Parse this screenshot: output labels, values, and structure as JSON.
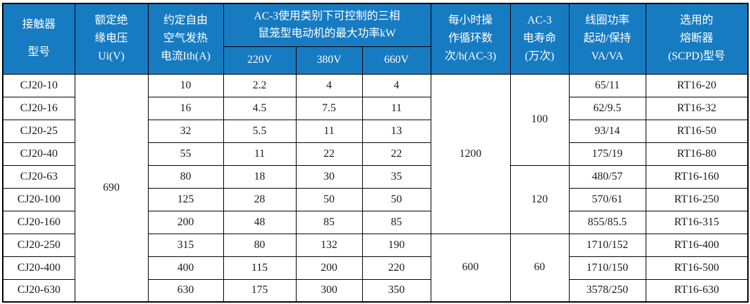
{
  "colors": {
    "header_bg": "#177bc2",
    "header_text": "#ffffff",
    "border": "#000000",
    "body_bg": "#ffffff",
    "body_text": "#1a1a1a"
  },
  "header": {
    "model": [
      "接触器",
      "型号"
    ],
    "ui": [
      "额定绝",
      "缘电压",
      "Ui(V)"
    ],
    "ith": [
      "约定自由",
      "空气发热",
      "电流Ith(A)"
    ],
    "power_group": [
      "AC-3使用类别下可控制的三相",
      "鼠笼型电动机的最大功率kW"
    ],
    "power_cols": [
      "220V",
      "380V",
      "660V"
    ],
    "cycles": [
      "每小时操",
      "作循环数",
      "次/h(AC-3)"
    ],
    "life": [
      "AC-3",
      "电寿命",
      "(万次)"
    ],
    "coil": [
      "线圈功率",
      "起动/保持",
      "VA/VA"
    ],
    "fuse": [
      "选用的",
      "熔断器",
      "(SCPD)型号"
    ]
  },
  "chart_data": {
    "type": "table",
    "title": "",
    "columns": [
      "接触器型号",
      "额定绝缘电压Ui(V)",
      "约定自由空气发热电流Ith(A)",
      "AC-3使用类别下可控制的三相鼠笼型电动机的最大功率kW 220V",
      "AC-3使用类别下可控制的三相鼠笼型电动机的最大功率kW 380V",
      "AC-3使用类别下可控制的三相鼠笼型电动机的最大功率kW 660V",
      "每小时操作循环数 次/h(AC-3)",
      "AC-3电寿命(万次)",
      "线圈功率 起动/保持 VA/VA",
      "选用的熔断器(SCPD)型号"
    ],
    "merged_cells": {
      "ui_all_rows": "690",
      "cycles_rows_1_to_7": "1200",
      "cycles_rows_8_to_10": "600",
      "life_rows_1_to_4": "100",
      "life_rows_5_to_7": "120",
      "life_rows_8_to_10": "60"
    },
    "rows": [
      [
        "CJ20-10",
        "690",
        "10",
        "2.2",
        "4",
        "4",
        "1200",
        "100",
        "65/11",
        "RT16-20"
      ],
      [
        "CJ20-16",
        "690",
        "16",
        "4.5",
        "7.5",
        "11",
        "1200",
        "100",
        "62/9.5",
        "RT16-32"
      ],
      [
        "CJ20-25",
        "690",
        "32",
        "5.5",
        "11",
        "13",
        "1200",
        "100",
        "93/14",
        "RT16-50"
      ],
      [
        "CJ20-40",
        "690",
        "55",
        "11",
        "22",
        "22",
        "1200",
        "100",
        "175/19",
        "RT16-80"
      ],
      [
        "CJ20-63",
        "690",
        "80",
        "18",
        "30",
        "35",
        "1200",
        "120",
        "480/57",
        "RT16-160"
      ],
      [
        "CJ20-100",
        "690",
        "125",
        "28",
        "50",
        "50",
        "1200",
        "120",
        "570/61",
        "RT16-250"
      ],
      [
        "CJ20-160",
        "690",
        "200",
        "48",
        "85",
        "85",
        "1200",
        "120",
        "855/85.5",
        "RT16-315"
      ],
      [
        "CJ20-250",
        "690",
        "315",
        "80",
        "132",
        "190",
        "600",
        "60",
        "1710/152",
        "RT16-400"
      ],
      [
        "CJ20-400",
        "690",
        "400",
        "115",
        "200",
        "220",
        "600",
        "60",
        "1710/150",
        "RT16-500"
      ],
      [
        "CJ20-630",
        "690",
        "630",
        "175",
        "300",
        "350",
        "600",
        "60",
        "3578/250",
        "RT16-630"
      ]
    ]
  }
}
